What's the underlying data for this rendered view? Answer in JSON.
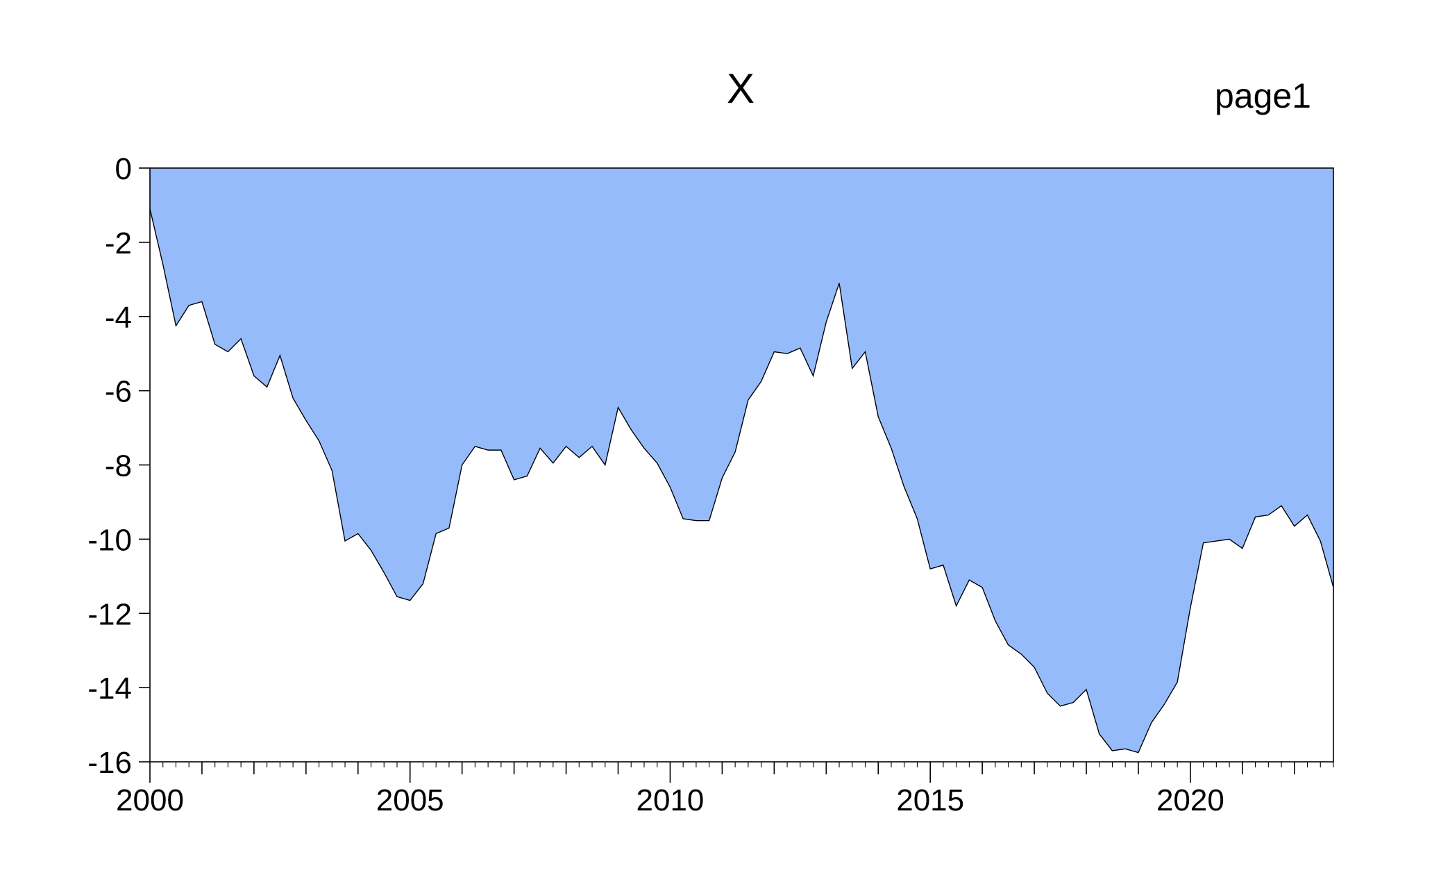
{
  "page_label": "page1",
  "chart_data": {
    "type": "area",
    "title": "X",
    "xlabel": "",
    "ylabel": "",
    "frequency": "quarterly",
    "xlim": [
      2000.0,
      2022.75
    ],
    "ylim": [
      -16,
      0
    ],
    "y_ticks": [
      0,
      -2,
      -4,
      -6,
      -8,
      -10,
      -12,
      -14,
      -16
    ],
    "x_tick_labels": [
      "2000",
      "2005",
      "2010",
      "2015",
      "2020"
    ],
    "grid": false,
    "legend": "none",
    "fill_color": "#95BBFB",
    "line_color": "#000000",
    "x": [
      2000.0,
      2000.25,
      2000.5,
      2000.75,
      2001.0,
      2001.25,
      2001.5,
      2001.75,
      2002.0,
      2002.25,
      2002.5,
      2002.75,
      2003.0,
      2003.25,
      2003.5,
      2003.75,
      2004.0,
      2004.25,
      2004.5,
      2004.75,
      2005.0,
      2005.25,
      2005.5,
      2005.75,
      2006.0,
      2006.25,
      2006.5,
      2006.75,
      2007.0,
      2007.25,
      2007.5,
      2007.75,
      2008.0,
      2008.25,
      2008.5,
      2008.75,
      2009.0,
      2009.25,
      2009.5,
      2009.75,
      2010.0,
      2010.25,
      2010.5,
      2010.75,
      2011.0,
      2011.25,
      2011.5,
      2011.75,
      2012.0,
      2012.25,
      2012.5,
      2012.75,
      2013.0,
      2013.25,
      2013.5,
      2013.75,
      2014.0,
      2014.25,
      2014.5,
      2014.75,
      2015.0,
      2015.25,
      2015.5,
      2015.75,
      2016.0,
      2016.25,
      2016.5,
      2016.75,
      2017.0,
      2017.25,
      2017.5,
      2017.75,
      2018.0,
      2018.25,
      2018.5,
      2018.75,
      2019.0,
      2019.25,
      2019.5,
      2019.75,
      2020.0,
      2020.25,
      2020.5,
      2020.75,
      2021.0,
      2021.25,
      2021.5,
      2021.75,
      2022.0,
      2022.25,
      2022.5,
      2022.75
    ],
    "values": [
      -1.1,
      -2.6,
      -4.25,
      -3.7,
      -3.6,
      -4.75,
      -4.95,
      -4.6,
      -5.6,
      -5.9,
      -5.05,
      -6.2,
      -6.8,
      -7.35,
      -8.15,
      -10.05,
      -9.85,
      -10.3,
      -10.9,
      -11.55,
      -11.65,
      -11.2,
      -9.85,
      -9.7,
      -8.0,
      -7.5,
      -7.6,
      -7.6,
      -8.4,
      -8.3,
      -7.55,
      -7.95,
      -7.5,
      -7.8,
      -7.5,
      -8.0,
      -6.45,
      -7.05,
      -7.55,
      -7.95,
      -8.6,
      -9.45,
      -9.5,
      -9.5,
      -8.35,
      -7.65,
      -6.25,
      -5.75,
      -4.95,
      -5.0,
      -4.85,
      -5.6,
      -4.15,
      -3.1,
      -5.4,
      -4.95,
      -6.7,
      -7.55,
      -8.6,
      -9.45,
      -10.8,
      -10.7,
      -11.8,
      -11.1,
      -11.3,
      -12.2,
      -12.85,
      -13.1,
      -13.45,
      -14.15,
      -14.5,
      -14.4,
      -14.05,
      -15.25,
      -15.7,
      -15.65,
      -15.75,
      -14.95,
      -14.45,
      -13.85,
      -11.85,
      -10.1,
      -10.05,
      -10.0,
      -10.25,
      -9.4,
      -9.35,
      -9.1,
      -9.65,
      -9.35,
      -10.05,
      -11.3
    ]
  }
}
